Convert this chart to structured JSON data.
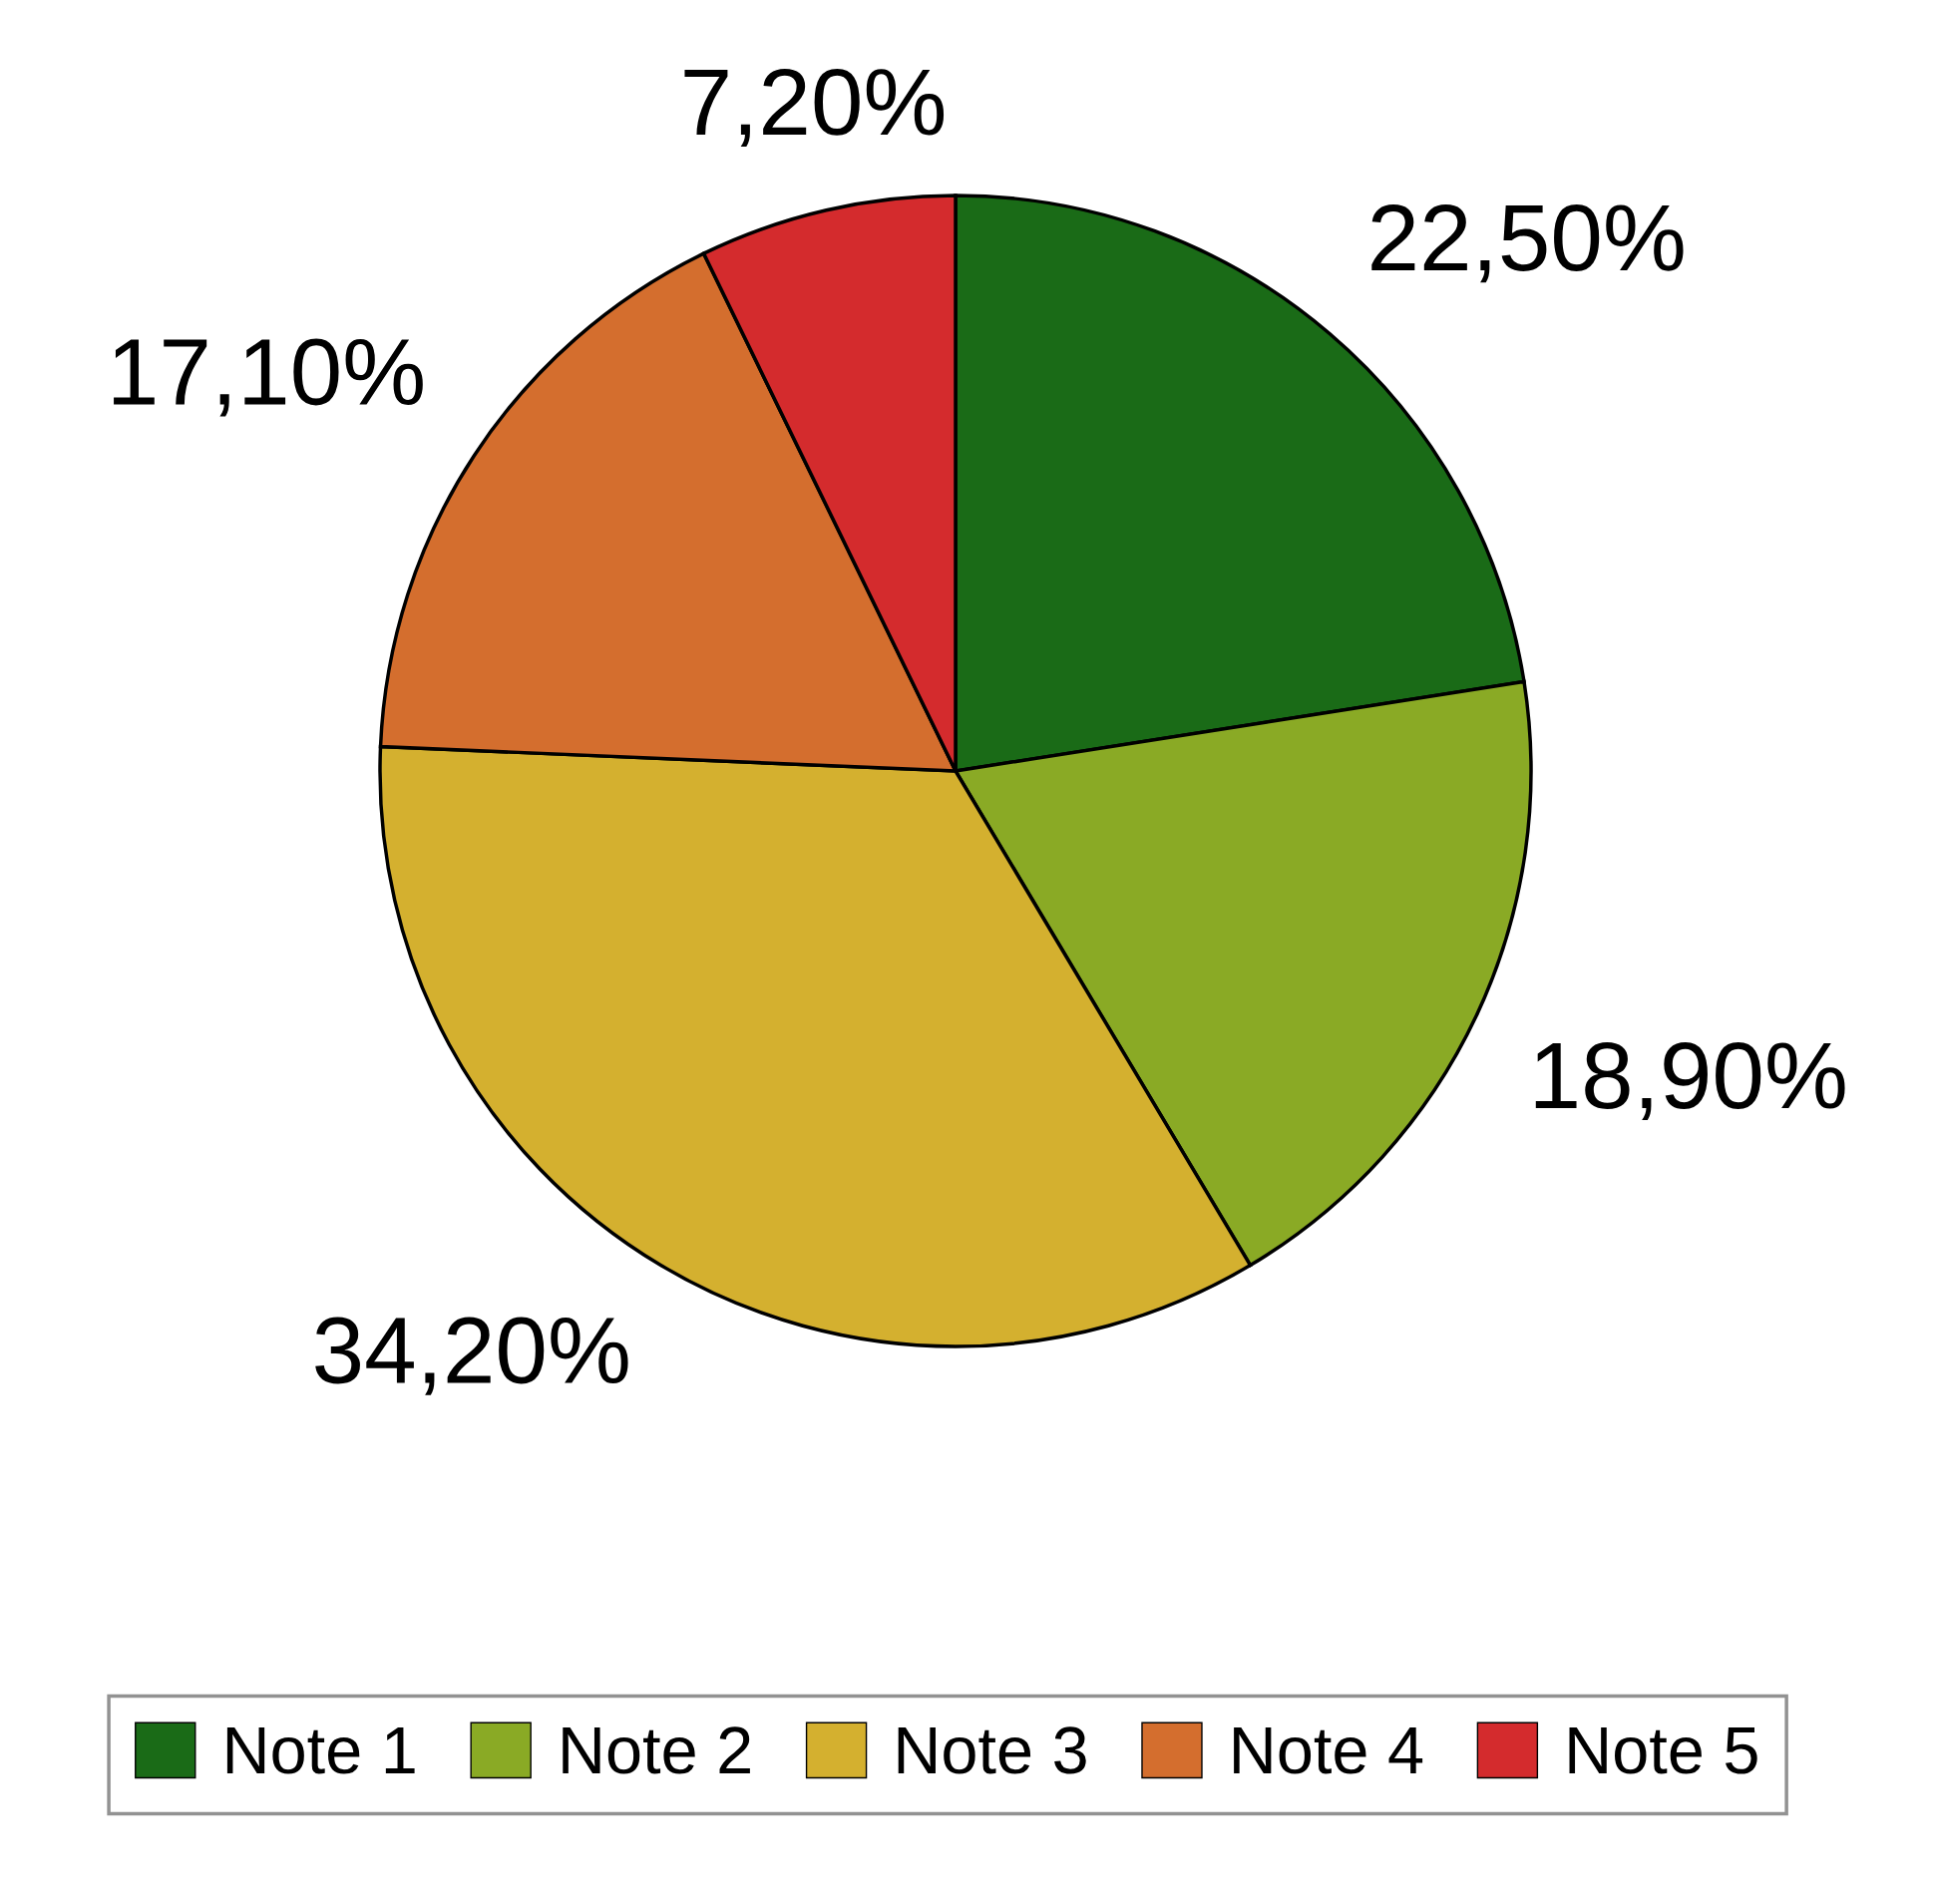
{
  "chart_data": {
    "type": "pie",
    "categories": [
      "Note 1",
      "Note 2",
      "Note 3",
      "Note 4",
      "Note 5"
    ],
    "values": [
      22.5,
      18.9,
      34.2,
      17.1,
      7.2
    ],
    "value_labels": [
      "22,50%",
      "18,90%",
      "34,20%",
      "17,10%",
      "7,20%"
    ],
    "colors": [
      "#1a6b17",
      "#8aaa25",
      "#d4b02f",
      "#d46e2e",
      "#d42b2d"
    ],
    "legend": "bottom"
  }
}
